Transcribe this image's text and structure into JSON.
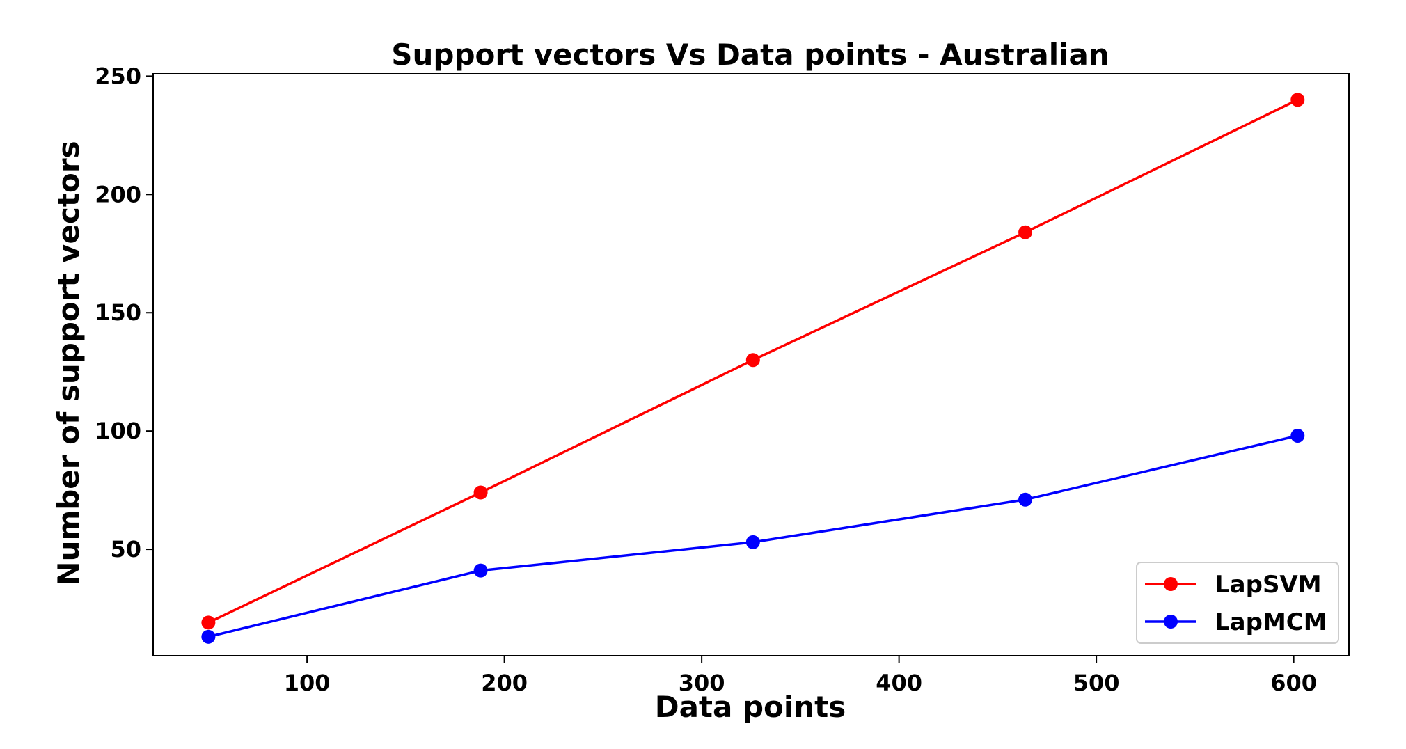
{
  "chart_data": {
    "type": "line",
    "title": "Support vectors Vs Data points - Australian",
    "xlabel": "Data points",
    "ylabel": "Number of support vectors",
    "xlim": [
      22,
      628
    ],
    "ylim": [
      5,
      251
    ],
    "xticks": [
      100,
      200,
      300,
      400,
      500,
      600
    ],
    "yticks": [
      50,
      100,
      150,
      200,
      250
    ],
    "grid": false,
    "legend_position": "bottom-right",
    "x": [
      50,
      188,
      326,
      464,
      602
    ],
    "series": [
      {
        "name": "LapSVM",
        "color": "#ff0000",
        "values": [
          19,
          74,
          130,
          184,
          240
        ]
      },
      {
        "name": "LapMCM",
        "color": "#0000ff",
        "values": [
          13,
          41,
          53,
          71,
          98
        ]
      }
    ]
  }
}
